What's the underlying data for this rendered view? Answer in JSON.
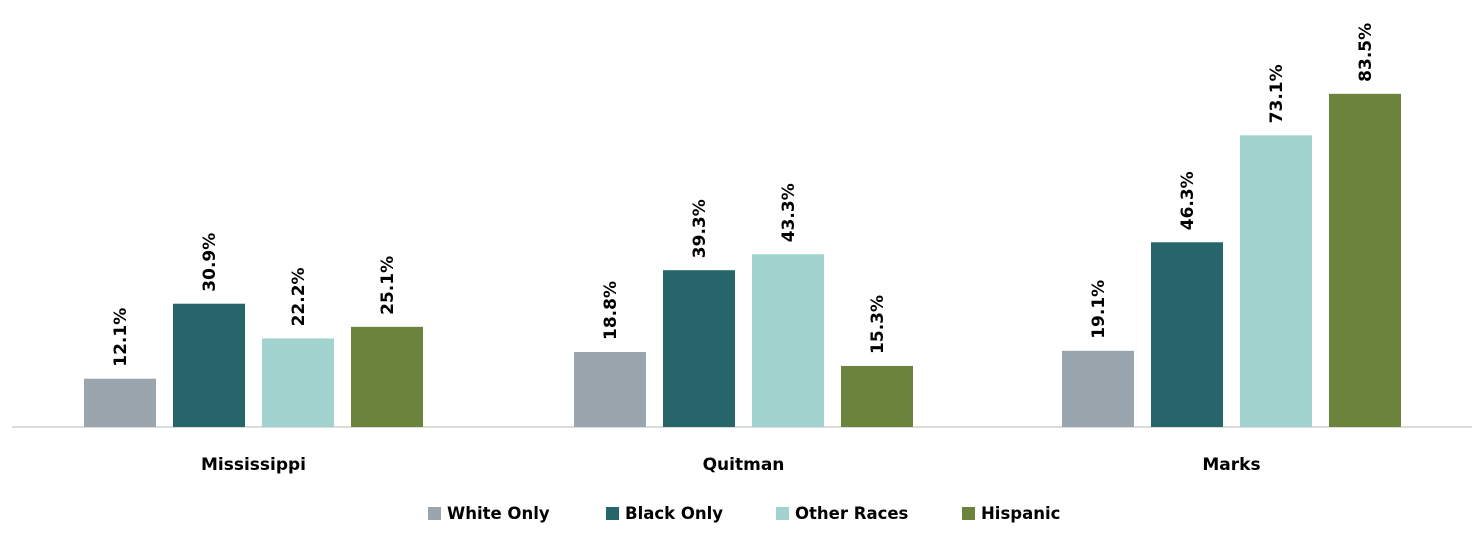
{
  "chart_data": {
    "type": "bar",
    "title": "",
    "xlabel": "",
    "ylabel": "",
    "categories": [
      "Mississippi",
      "Quitman",
      "Marks"
    ],
    "series": [
      {
        "name": "White Only",
        "color": "#9ba5ae",
        "values": [
          12.1,
          18.8,
          19.1
        ],
        "labels": [
          "12.1%",
          "18.8%",
          "19.1%"
        ]
      },
      {
        "name": "Black Only",
        "color": "#26666b",
        "values": [
          30.9,
          39.3,
          46.3
        ],
        "labels": [
          "30.9%",
          "39.3%",
          "46.3%"
        ]
      },
      {
        "name": "Other Races",
        "color": "#a3d3ce",
        "values": [
          22.2,
          43.3,
          73.1
        ],
        "labels": [
          "22.2%",
          "43.3%",
          "73.1%"
        ]
      },
      {
        "name": "Hispanic",
        "color": "#6b833a",
        "values": [
          25.1,
          15.3,
          83.5
        ],
        "labels": [
          "25.1%",
          "15.3%",
          "83.5%"
        ]
      }
    ],
    "ylim": [
      0,
      100
    ],
    "unit": "%",
    "grid": false,
    "legend_position": "bottom",
    "data_labels": "rotated-vertical-above-bars"
  }
}
